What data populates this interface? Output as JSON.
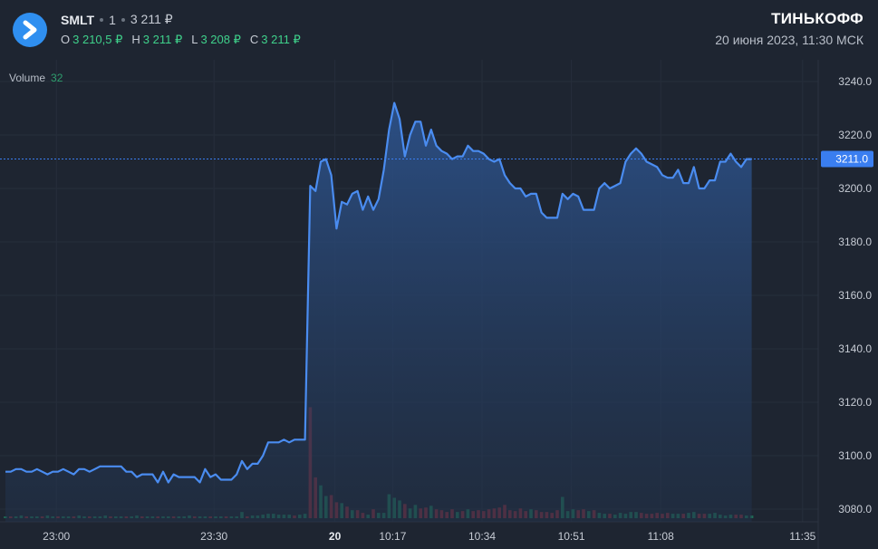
{
  "header": {
    "ticker": "SMLT",
    "interval": "1",
    "last_price": "3 211 ₽",
    "ohlc": [
      {
        "key": "O",
        "value": "3 210,5 ₽"
      },
      {
        "key": "H",
        "value": "3 211 ₽"
      },
      {
        "key": "L",
        "value": "3 208 ₽"
      },
      {
        "key": "C",
        "value": "3 211 ₽"
      }
    ],
    "brand": "ТИНЬКОФФ",
    "datetime": "20 июня 2023, 11:30 МСК"
  },
  "volume_panel": {
    "label": "Volume",
    "value": "32"
  },
  "colors": {
    "background": "#1e2531",
    "line": "#4a8cf0",
    "area_fill": "#2a4a7a",
    "volume_up": "#1f6b55",
    "volume_down": "#7a2e3c",
    "price_badge": "#3a7ef0",
    "ohlc_values": "#3fd18b"
  },
  "chart_data": {
    "type": "area",
    "ylim": [
      3077,
      3244
    ],
    "y_ticks": [
      3080.0,
      3100.0,
      3120.0,
      3140.0,
      3160.0,
      3180.0,
      3200.0,
      3220.0,
      3240.0
    ],
    "y_tick_labels": [
      "3080.0",
      "3100.0",
      "3120.0",
      "3140.0",
      "3160.0",
      "3180.0",
      "3200.0",
      "3220.0",
      "3240.0"
    ],
    "x_tick_labels": [
      "23:00",
      "23:30",
      "20",
      "10:17",
      "10:34",
      "10:51",
      "11:08",
      "11:35"
    ],
    "x_tick_positions": [
      9,
      39,
      62,
      73,
      90,
      107,
      124,
      151
    ],
    "last_value": 3211.0,
    "last_value_label": "3211.0",
    "price": [
      3094,
      3094,
      3095,
      3095,
      3094,
      3094,
      3095,
      3094,
      3093,
      3094,
      3094,
      3095,
      3094,
      3093,
      3095,
      3095,
      3094,
      3095,
      3096,
      3096,
      3096,
      3096,
      3096,
      3094,
      3094,
      3092,
      3093,
      3093,
      3093,
      3090,
      3094,
      3090,
      3093,
      3092,
      3092,
      3092,
      3092,
      3090,
      3095,
      3092,
      3093,
      3091,
      3091,
      3091,
      3093,
      3098,
      3095,
      3097,
      3097,
      3100,
      3105,
      3105,
      3105,
      3106,
      3105,
      3106,
      3106,
      3106,
      3201,
      3199,
      3210,
      3211,
      3205,
      3185,
      3195,
      3194,
      3198,
      3199,
      3192,
      3197,
      3192,
      3196,
      3207,
      3222,
      3232,
      3226,
      3212,
      3220,
      3225,
      3225,
      3216,
      3222,
      3216,
      3214,
      3213,
      3211,
      3212,
      3212,
      3216,
      3214,
      3214,
      3213,
      3211,
      3210,
      3211,
      3205,
      3202,
      3200,
      3200,
      3197,
      3198,
      3198,
      3191,
      3189,
      3189,
      3189,
      3198,
      3196,
      3198,
      3197,
      3192,
      3192,
      3192,
      3200,
      3202,
      3200,
      3201,
      3202,
      3210,
      3213,
      3215,
      3213,
      3210,
      3209,
      3208,
      3205,
      3204,
      3204,
      3207,
      3202,
      3202,
      3208,
      3200,
      3200,
      3203,
      3203,
      3210,
      3210,
      3213,
      3210,
      3208,
      3211,
      3211
    ],
    "volume": [
      2,
      2,
      2,
      3,
      2,
      2,
      2,
      2,
      3,
      2,
      2,
      2,
      2,
      2,
      3,
      2,
      2,
      2,
      2,
      3,
      2,
      2,
      2,
      2,
      2,
      3,
      2,
      2,
      2,
      2,
      2,
      2,
      2,
      2,
      2,
      3,
      2,
      2,
      2,
      2,
      2,
      2,
      2,
      2,
      2,
      7,
      2,
      3,
      3,
      4,
      5,
      5,
      4,
      4,
      4,
      3,
      4,
      5,
      125,
      46,
      37,
      25,
      26,
      18,
      17,
      13,
      9,
      9,
      6,
      4,
      10,
      6,
      6,
      27,
      23,
      20,
      16,
      11,
      15,
      11,
      12,
      14,
      10,
      9,
      7,
      10,
      7,
      8,
      10,
      8,
      9,
      8,
      10,
      11,
      12,
      15,
      9,
      8,
      11,
      8,
      10,
      9,
      7,
      7,
      6,
      9,
      24,
      8,
      10,
      9,
      10,
      8,
      9,
      6,
      5,
      5,
      4,
      6,
      5,
      7,
      7,
      6,
      5,
      5,
      6,
      5,
      6,
      5,
      5,
      5,
      6,
      7,
      5,
      5,
      5,
      6,
      4,
      3,
      4,
      4,
      4,
      3,
      3
    ],
    "volume_up": [
      1,
      0,
      1,
      1,
      0,
      1,
      1,
      0,
      1,
      1,
      0,
      1,
      1,
      0,
      1,
      1,
      0,
      1,
      1,
      1,
      0,
      1,
      1,
      0,
      1,
      1,
      0,
      1,
      1,
      0,
      1,
      1,
      0,
      1,
      1,
      1,
      0,
      1,
      1,
      0,
      1,
      1,
      0,
      1,
      1,
      1,
      0,
      1,
      1,
      1,
      1,
      1,
      1,
      1,
      1,
      0,
      1,
      1,
      0,
      0,
      1,
      1,
      0,
      0,
      1,
      0,
      1,
      0,
      0,
      1,
      0,
      1,
      1,
      1,
      1,
      1,
      0,
      1,
      1,
      0,
      0,
      1,
      0,
      0,
      0,
      0,
      1,
      0,
      1,
      0,
      0,
      0,
      0,
      0,
      0,
      0,
      0,
      0,
      0,
      0,
      1,
      0,
      0,
      0,
      0,
      0,
      1,
      1,
      1,
      0,
      0,
      1,
      0,
      1,
      1,
      0,
      1,
      1,
      1,
      1,
      1,
      0,
      0,
      0,
      0,
      0,
      0,
      1,
      1,
      0,
      1,
      1,
      0,
      0,
      1,
      1,
      1,
      1,
      1,
      0,
      0,
      1,
      1
    ]
  }
}
